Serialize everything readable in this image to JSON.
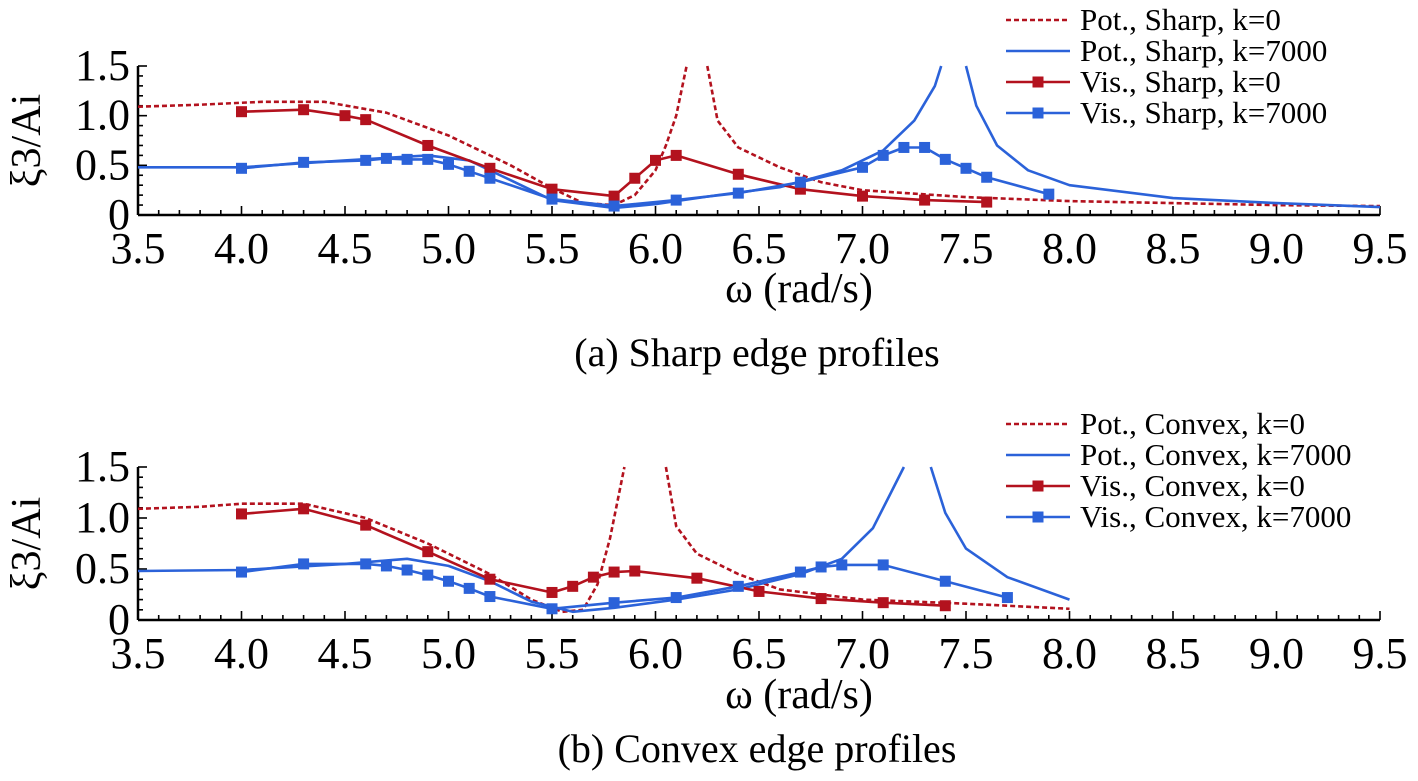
{
  "colors": {
    "red": "#b3121e",
    "blue": "#2b62d9",
    "axis": "#000000"
  },
  "chart_data": [
    {
      "type": "line",
      "caption": "(a) Sharp edge profiles",
      "xlabel": "ω (rad/s)",
      "ylabel": "ξ3/Ai",
      "xlim": [
        3.5,
        9.5
      ],
      "ylim": [
        0,
        1.5
      ],
      "x_ticks": [
        "3.5",
        "4.0",
        "4.5",
        "5.0",
        "5.5",
        "6.0",
        "6.5",
        "7.0",
        "7.5",
        "8.0",
        "8.5",
        "9.0",
        "9.5"
      ],
      "y_ticks": [
        "0",
        "0.5",
        "1.0",
        "1.5"
      ],
      "legend_position": "top-right",
      "series": [
        {
          "name": "Pot., Sharp, k=0",
          "style": "dashed",
          "color": "#b3121e",
          "segments": [
            [
              [
                3.5,
                1.09
              ],
              [
                3.8,
                1.11
              ],
              [
                4.1,
                1.14
              ],
              [
                4.4,
                1.14
              ],
              [
                4.7,
                1.03
              ],
              [
                5.0,
                0.8
              ],
              [
                5.3,
                0.5
              ],
              [
                5.5,
                0.27
              ],
              [
                5.65,
                0.12
              ],
              [
                5.8,
                0.1
              ],
              [
                5.9,
                0.2
              ],
              [
                6.0,
                0.45
              ],
              [
                6.05,
                0.7
              ],
              [
                6.1,
                1.0
              ],
              [
                6.15,
                1.5
              ]
            ],
            [
              [
                6.25,
                1.5
              ],
              [
                6.3,
                0.95
              ],
              [
                6.4,
                0.68
              ],
              [
                6.6,
                0.48
              ],
              [
                6.8,
                0.33
              ],
              [
                7.0,
                0.25
              ],
              [
                7.5,
                0.18
              ],
              [
                8.0,
                0.14
              ],
              [
                8.5,
                0.12
              ],
              [
                9.0,
                0.1
              ],
              [
                9.5,
                0.09
              ]
            ]
          ]
        },
        {
          "name": "Pot., Sharp, k=7000",
          "style": "solid",
          "color": "#2b62d9",
          "segments": [
            [
              [
                3.5,
                0.48
              ],
              [
                4.0,
                0.48
              ],
              [
                4.5,
                0.55
              ],
              [
                4.9,
                0.6
              ],
              [
                5.1,
                0.55
              ],
              [
                5.3,
                0.35
              ],
              [
                5.5,
                0.15
              ],
              [
                5.8,
                0.07
              ],
              [
                6.0,
                0.11
              ],
              [
                6.3,
                0.2
              ],
              [
                6.6,
                0.28
              ],
              [
                6.9,
                0.45
              ],
              [
                7.1,
                0.65
              ],
              [
                7.25,
                0.95
              ],
              [
                7.35,
                1.3
              ],
              [
                7.38,
                1.5
              ]
            ],
            [
              [
                7.5,
                1.5
              ],
              [
                7.55,
                1.1
              ],
              [
                7.65,
                0.7
              ],
              [
                7.8,
                0.45
              ],
              [
                8.0,
                0.3
              ],
              [
                8.5,
                0.17
              ],
              [
                9.0,
                0.12
              ],
              [
                9.5,
                0.08
              ]
            ]
          ]
        },
        {
          "name": "Vis., Sharp, k=0",
          "style": "solid-square",
          "color": "#b3121e",
          "points": [
            [
              4.0,
              1.04
            ],
            [
              4.3,
              1.06
            ],
            [
              4.5,
              1.0
            ],
            [
              4.6,
              0.96
            ],
            [
              4.9,
              0.7
            ],
            [
              5.2,
              0.47
            ],
            [
              5.5,
              0.26
            ],
            [
              5.8,
              0.19
            ],
            [
              5.9,
              0.37
            ],
            [
              6.0,
              0.55
            ],
            [
              6.1,
              0.6
            ],
            [
              6.4,
              0.41
            ],
            [
              6.7,
              0.26
            ],
            [
              7.0,
              0.19
            ],
            [
              7.3,
              0.15
            ],
            [
              7.6,
              0.13
            ]
          ]
        },
        {
          "name": "Vis., Sharp, k=7000",
          "style": "solid-square",
          "color": "#2b62d9",
          "points": [
            [
              4.0,
              0.47
            ],
            [
              4.3,
              0.53
            ],
            [
              4.6,
              0.55
            ],
            [
              4.7,
              0.57
            ],
            [
              4.8,
              0.56
            ],
            [
              4.9,
              0.56
            ],
            [
              5.0,
              0.51
            ],
            [
              5.1,
              0.44
            ],
            [
              5.2,
              0.37
            ],
            [
              5.5,
              0.16
            ],
            [
              5.8,
              0.09
            ],
            [
              6.1,
              0.15
            ],
            [
              6.4,
              0.22
            ],
            [
              6.7,
              0.33
            ],
            [
              7.0,
              0.48
            ],
            [
              7.1,
              0.6
            ],
            [
              7.2,
              0.68
            ],
            [
              7.3,
              0.68
            ],
            [
              7.4,
              0.56
            ],
            [
              7.5,
              0.47
            ],
            [
              7.6,
              0.38
            ],
            [
              7.9,
              0.21
            ]
          ]
        }
      ]
    },
    {
      "type": "line",
      "caption": "(b) Convex edge profiles",
      "xlabel": "ω (rad/s)",
      "ylabel": "ξ3/Ai",
      "xlim": [
        3.5,
        9.5
      ],
      "ylim": [
        0,
        1.5
      ],
      "x_ticks": [
        "3.5",
        "4.0",
        "4.5",
        "5.0",
        "5.5",
        "6.0",
        "6.5",
        "7.0",
        "7.5",
        "8.0",
        "8.5",
        "9.0",
        "9.5"
      ],
      "y_ticks": [
        "0",
        "0.5",
        "1.0",
        "1.5"
      ],
      "legend_position": "top-right",
      "series": [
        {
          "name": "Pot., Convex, k=0",
          "style": "dashed",
          "color": "#b3121e",
          "segments": [
            [
              [
                3.5,
                1.09
              ],
              [
                3.8,
                1.11
              ],
              [
                4.0,
                1.14
              ],
              [
                4.3,
                1.14
              ],
              [
                4.6,
                1.0
              ],
              [
                4.9,
                0.75
              ],
              [
                5.2,
                0.45
              ],
              [
                5.4,
                0.2
              ],
              [
                5.55,
                0.08
              ],
              [
                5.65,
                0.1
              ],
              [
                5.72,
                0.35
              ],
              [
                5.78,
                0.8
              ],
              [
                5.85,
                1.5
              ]
            ],
            [
              [
                6.05,
                1.5
              ],
              [
                6.1,
                0.92
              ],
              [
                6.2,
                0.65
              ],
              [
                6.4,
                0.45
              ],
              [
                6.6,
                0.3
              ],
              [
                7.0,
                0.2
              ],
              [
                7.5,
                0.16
              ],
              [
                8.0,
                0.11
              ]
            ]
          ]
        },
        {
          "name": "Pot., Convex, k=7000",
          "style": "solid",
          "color": "#2b62d9",
          "segments": [
            [
              [
                3.5,
                0.48
              ],
              [
                4.0,
                0.49
              ],
              [
                4.5,
                0.55
              ],
              [
                4.8,
                0.6
              ],
              [
                5.0,
                0.53
              ],
              [
                5.2,
                0.38
              ],
              [
                5.4,
                0.18
              ],
              [
                5.6,
                0.08
              ],
              [
                5.8,
                0.12
              ],
              [
                6.1,
                0.2
              ],
              [
                6.4,
                0.3
              ],
              [
                6.7,
                0.45
              ],
              [
                6.9,
                0.6
              ],
              [
                7.05,
                0.9
              ],
              [
                7.15,
                1.3
              ],
              [
                7.2,
                1.5
              ]
            ],
            [
              [
                7.33,
                1.5
              ],
              [
                7.4,
                1.05
              ],
              [
                7.5,
                0.7
              ],
              [
                7.7,
                0.42
              ],
              [
                8.0,
                0.2
              ]
            ]
          ]
        },
        {
          "name": "Vis., Convex, k=0",
          "style": "solid-square",
          "color": "#b3121e",
          "points": [
            [
              4.0,
              1.04
            ],
            [
              4.3,
              1.09
            ],
            [
              4.6,
              0.93
            ],
            [
              4.9,
              0.67
            ],
            [
              5.2,
              0.4
            ],
            [
              5.5,
              0.27
            ],
            [
              5.6,
              0.33
            ],
            [
              5.7,
              0.42
            ],
            [
              5.8,
              0.47
            ],
            [
              5.9,
              0.48
            ],
            [
              6.2,
              0.41
            ],
            [
              6.5,
              0.28
            ],
            [
              6.8,
              0.21
            ],
            [
              7.1,
              0.17
            ],
            [
              7.4,
              0.14
            ]
          ]
        },
        {
          "name": "Vis., Convex, k=7000",
          "style": "solid-square",
          "color": "#2b62d9",
          "points": [
            [
              4.0,
              0.47
            ],
            [
              4.3,
              0.55
            ],
            [
              4.6,
              0.55
            ],
            [
              4.7,
              0.53
            ],
            [
              4.8,
              0.49
            ],
            [
              4.9,
              0.44
            ],
            [
              5.0,
              0.38
            ],
            [
              5.1,
              0.31
            ],
            [
              5.2,
              0.23
            ],
            [
              5.5,
              0.11
            ],
            [
              5.8,
              0.17
            ],
            [
              6.1,
              0.22
            ],
            [
              6.4,
              0.33
            ],
            [
              6.7,
              0.47
            ],
            [
              6.8,
              0.52
            ],
            [
              6.9,
              0.54
            ],
            [
              7.1,
              0.54
            ],
            [
              7.4,
              0.38
            ],
            [
              7.7,
              0.22
            ]
          ]
        }
      ]
    }
  ]
}
